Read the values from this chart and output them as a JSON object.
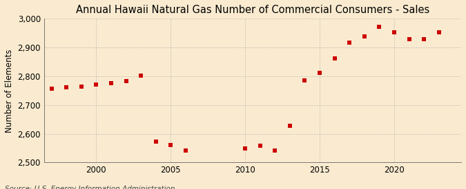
{
  "title": "Annual Hawaii Natural Gas Number of Commercial Consumers - Sales",
  "ylabel": "Number of Elements",
  "xlabel": "",
  "background_color": "#faebd0",
  "plot_bg_color": "#faebd0",
  "grid_color": "#aaaaaa",
  "marker_color": "#cc0000",
  "years": [
    1997,
    1998,
    1999,
    2000,
    2001,
    2002,
    2003,
    2004,
    2005,
    2006,
    2010,
    2011,
    2012,
    2013,
    2014,
    2015,
    2016,
    2017,
    2018,
    2019,
    2020,
    2021,
    2022,
    2023
  ],
  "values": [
    2758,
    2762,
    2765,
    2770,
    2775,
    2782,
    2802,
    2572,
    2560,
    2542,
    2548,
    2558,
    2542,
    2628,
    2785,
    2813,
    2862,
    2918,
    2938,
    2972,
    2952,
    2930,
    2928,
    2952
  ],
  "ylim": [
    2500,
    3000
  ],
  "yticks": [
    2500,
    2600,
    2700,
    2800,
    2900,
    3000
  ],
  "xticks": [
    2000,
    2005,
    2010,
    2015,
    2020
  ],
  "xlim": [
    1996.5,
    2024.5
  ],
  "source_text": "Source: U.S. Energy Information Administration",
  "title_fontsize": 10.5,
  "label_fontsize": 8.5,
  "tick_fontsize": 8.5,
  "source_fontsize": 7.5
}
